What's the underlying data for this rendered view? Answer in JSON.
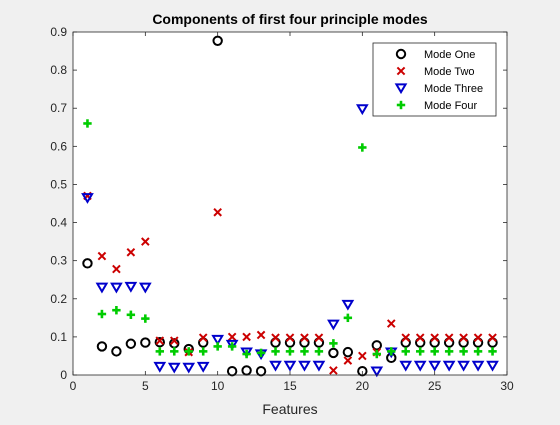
{
  "chart_data": {
    "type": "scatter",
    "title": "Components of first four principle modes",
    "xlabel": "Features",
    "ylabel": "",
    "xlim": [
      0,
      30
    ],
    "ylim": [
      0,
      0.9
    ],
    "xticks": [
      0,
      5,
      10,
      15,
      20,
      25,
      30
    ],
    "yticks": [
      0,
      0.1,
      0.2,
      0.3,
      0.4,
      0.5,
      0.6,
      0.7,
      0.8,
      0.9
    ],
    "grid": false,
    "legend_position": "top-right",
    "series": [
      {
        "name": "Mode One",
        "marker": "circle",
        "color": "#000000",
        "x": [
          1,
          2,
          3,
          4,
          5,
          6,
          7,
          8,
          9,
          10,
          11,
          12,
          13,
          14,
          15,
          16,
          17,
          18,
          19,
          20,
          21,
          22,
          23,
          24,
          25,
          26,
          27,
          28,
          29
        ],
        "y": [
          0.293,
          0.075,
          0.062,
          0.082,
          0.085,
          0.086,
          0.083,
          0.068,
          0.085,
          0.877,
          0.01,
          0.012,
          0.01,
          0.085,
          0.085,
          0.085,
          0.085,
          0.058,
          0.06,
          0.01,
          0.078,
          0.045,
          0.085,
          0.085,
          0.085,
          0.085,
          0.085,
          0.085,
          0.085
        ]
      },
      {
        "name": "Mode Two",
        "marker": "x",
        "color": "#cc0000",
        "x": [
          1,
          2,
          3,
          4,
          5,
          6,
          7,
          8,
          9,
          10,
          11,
          12,
          13,
          14,
          15,
          16,
          17,
          18,
          19,
          20,
          21,
          22,
          23,
          24,
          25,
          26,
          27,
          28,
          29
        ],
        "y": [
          0.47,
          0.312,
          0.278,
          0.322,
          0.35,
          0.09,
          0.09,
          0.06,
          0.098,
          0.427,
          0.1,
          0.1,
          0.105,
          0.098,
          0.098,
          0.098,
          0.098,
          0.012,
          0.038,
          0.05,
          0.06,
          0.135,
          0.098,
          0.098,
          0.098,
          0.098,
          0.098,
          0.098,
          0.098
        ]
      },
      {
        "name": "Mode Three",
        "marker": "triangle-down",
        "color": "#0000cc",
        "x": [
          1,
          2,
          3,
          4,
          5,
          6,
          7,
          8,
          9,
          10,
          11,
          12,
          13,
          14,
          15,
          16,
          17,
          18,
          19,
          20,
          21,
          22,
          23,
          24,
          25,
          26,
          27,
          28,
          29
        ],
        "y": [
          0.465,
          0.23,
          0.23,
          0.232,
          0.23,
          0.022,
          0.02,
          0.02,
          0.022,
          0.093,
          0.08,
          0.06,
          0.055,
          0.025,
          0.025,
          0.025,
          0.025,
          0.133,
          0.185,
          0.698,
          0.01,
          0.06,
          0.025,
          0.025,
          0.025,
          0.025,
          0.025,
          0.025,
          0.025
        ]
      },
      {
        "name": "Mode Four",
        "marker": "plus",
        "color": "#00cc00",
        "x": [
          1,
          2,
          3,
          4,
          5,
          6,
          7,
          8,
          9,
          10,
          11,
          12,
          13,
          14,
          15,
          16,
          17,
          18,
          19,
          20,
          21,
          22,
          23,
          24,
          25,
          26,
          27,
          28,
          29
        ],
        "y": [
          0.66,
          0.16,
          0.17,
          0.158,
          0.148,
          0.062,
          0.062,
          0.062,
          0.062,
          0.075,
          0.075,
          0.055,
          0.058,
          0.062,
          0.062,
          0.062,
          0.062,
          0.083,
          0.15,
          0.597,
          0.055,
          0.062,
          0.062,
          0.062,
          0.062,
          0.062,
          0.062,
          0.062,
          0.062
        ]
      }
    ]
  }
}
